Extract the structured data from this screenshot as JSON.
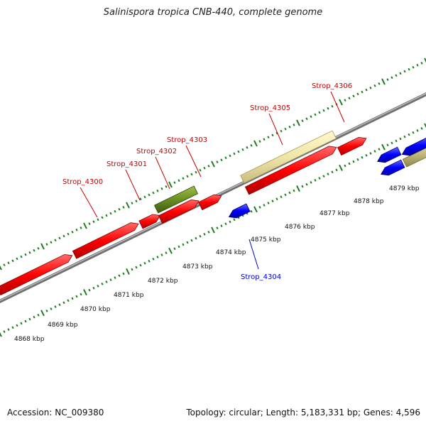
{
  "title": "Salinispora tropica CNB-440, complete genome",
  "footer": {
    "accession": "Accession: NC_009380",
    "summary": "Topology: circular; Length: 5,183,331 bp; Genes: 4,596"
  },
  "colors": {
    "forward_cds": "#ff0000",
    "reverse_cds": "#0000ff",
    "rna_light": "#f0e6a8",
    "rna_dark": "#6b8e23",
    "backbone": "#808080",
    "ticks": "#1e7d1e",
    "label_forward": "#cc0000",
    "label_reverse": "#0000cc"
  },
  "scale_labels": [
    "4868 kbp",
    "4869 kbp",
    "4870 kbp",
    "4871 kbp",
    "4872 kbp",
    "4873 kbp",
    "4874 kbp",
    "4875 kbp",
    "4876 kbp",
    "4877 kbp",
    "4878 kbp",
    "4879 kbp"
  ],
  "gene_labels": {
    "forward": [
      "Strop_4300",
      "Strop_4301",
      "Strop_4302",
      "Strop_4303",
      "Strop_4305",
      "Strop_4306"
    ],
    "reverse": [
      "Strop_4304"
    ]
  }
}
